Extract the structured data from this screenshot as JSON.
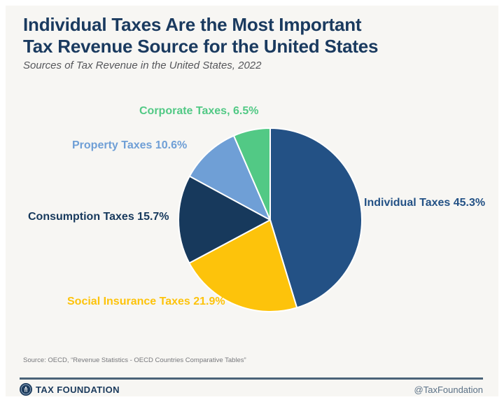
{
  "page": {
    "title_line1": "Individual Taxes Are the Most Important",
    "title_line2": "Tax Revenue Source for the United States",
    "subtitle": "Sources of Tax Revenue in the United States, 2022",
    "source_note": "Source: OECD, “Revenue Statistics - OECD Countries Comparative Tables”"
  },
  "footer": {
    "brand": "TAX FOUNDATION",
    "handle": "@TaxFoundation"
  },
  "colors": {
    "background": "#f7f6f3",
    "title": "#1a3a5f",
    "divider": "#4a6378",
    "slice_border": "#ffffff"
  },
  "chart_data": {
    "type": "pie",
    "title": "Sources of Tax Revenue in the United States, 2022",
    "start_angle_deg": 0,
    "direction": "clockwise",
    "legend_position": "outside-labels",
    "slices": [
      {
        "label": "Individual Taxes",
        "value": 45.3,
        "display": "Individual Taxes 45.3%",
        "color": "#235185"
      },
      {
        "label": "Social Insurance Taxes",
        "value": 21.9,
        "display": "Social Insurance Taxes 21.9%",
        "color": "#fdc30b"
      },
      {
        "label": "Consumption Taxes",
        "value": 15.7,
        "display": "Consumption Taxes 15.7%",
        "color": "#17395c"
      },
      {
        "label": "Property Taxes",
        "value": 10.6,
        "display": "Property Taxes 10.6%",
        "color": "#6f9fd6"
      },
      {
        "label": "Corporate Taxes",
        "value": 6.5,
        "display": "Corporate Taxes, 6.5%",
        "color": "#52c985"
      }
    ]
  }
}
